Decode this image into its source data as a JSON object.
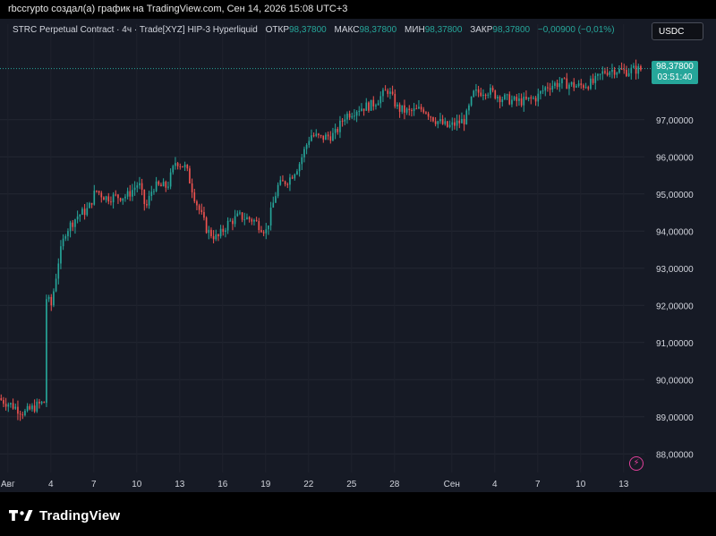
{
  "attribution": "rbccrypto создал(а) график на TradingView.com, Сен 14, 2026 15:08 UTC+3",
  "legend": {
    "symbol": "STRC Perpetual Contract · 4ч · Trade[XYZ] HIP-3 Hyperliquid",
    "open_label": "ОТКР",
    "open_value": "98,37800",
    "high_label": "МАКС",
    "high_value": "98,37800",
    "low_label": "МИН",
    "low_value": "98,37800",
    "close_label": "ЗАКР",
    "close_value": "98,37800",
    "change": "−0,00900 (−0,01%)"
  },
  "currency_button": "USDC",
  "price_tag": {
    "price": "98,37800",
    "countdown": "03:51:40"
  },
  "brand": {
    "name": "TradingView"
  },
  "colors": {
    "up": "#26a69a",
    "down": "#ef5350",
    "background": "#161a25",
    "accent_icon": "#e0409a"
  },
  "icons": {
    "logo": "tradingview-logo-icon",
    "alert": "lightning-alert-icon"
  },
  "chart_data": {
    "type": "candlestick",
    "y_range": [
      87.5,
      98.85
    ],
    "y_ticks": [
      {
        "value": 88,
        "label": "88,00000"
      },
      {
        "value": 89,
        "label": "89,00000"
      },
      {
        "value": 90,
        "label": "90,00000"
      },
      {
        "value": 91,
        "label": "91,00000"
      },
      {
        "value": 92,
        "label": "92,00000"
      },
      {
        "value": 93,
        "label": "93,00000"
      },
      {
        "value": 94,
        "label": "94,00000"
      },
      {
        "value": 95,
        "label": "95,00000"
      },
      {
        "value": 96,
        "label": "96,00000"
      },
      {
        "value": 97,
        "label": "97,00000"
      }
    ],
    "last_price": 98.378,
    "x_ticks": [
      {
        "day": 1,
        "label": "Авг"
      },
      {
        "day": 4,
        "label": "4"
      },
      {
        "day": 7,
        "label": "7"
      },
      {
        "day": 10,
        "label": "10"
      },
      {
        "day": 13,
        "label": "13"
      },
      {
        "day": 16,
        "label": "16"
      },
      {
        "day": 19,
        "label": "19"
      },
      {
        "day": 22,
        "label": "22"
      },
      {
        "day": 25,
        "label": "25"
      },
      {
        "day": 28,
        "label": "28"
      },
      {
        "day": 32,
        "label": "Сен"
      },
      {
        "day": 35,
        "label": "4"
      },
      {
        "day": 38,
        "label": "7"
      },
      {
        "day": 41,
        "label": "10"
      },
      {
        "day": 44,
        "label": "13"
      }
    ],
    "x_range_days": [
      0.45,
      45.45
    ],
    "anchors": [
      [
        0.45,
        89.5
      ],
      [
        1.5,
        89.3
      ],
      [
        2.3,
        89.1
      ],
      [
        3.2,
        89.3
      ],
      [
        3.75,
        89.4
      ],
      [
        3.85,
        92.2
      ],
      [
        4.2,
        92.0
      ],
      [
        4.7,
        93.2
      ],
      [
        5.2,
        94.0
      ],
      [
        6.0,
        94.4
      ],
      [
        6.8,
        94.6
      ],
      [
        7.3,
        95.1
      ],
      [
        8.0,
        94.9
      ],
      [
        9.5,
        94.95
      ],
      [
        10.3,
        95.3
      ],
      [
        10.8,
        94.6
      ],
      [
        11.3,
        95.2
      ],
      [
        12.3,
        95.2
      ],
      [
        12.9,
        95.9
      ],
      [
        13.6,
        95.7
      ],
      [
        14.3,
        94.8
      ],
      [
        15.1,
        94.0
      ],
      [
        15.8,
        93.8
      ],
      [
        16.5,
        94.2
      ],
      [
        17.3,
        94.4
      ],
      [
        18.3,
        94.3
      ],
      [
        19.2,
        94.0
      ],
      [
        20.0,
        95.2
      ],
      [
        20.8,
        95.4
      ],
      [
        21.5,
        95.8
      ],
      [
        22.3,
        96.6
      ],
      [
        23.0,
        96.5
      ],
      [
        24.0,
        96.6
      ],
      [
        24.7,
        97.1
      ],
      [
        25.6,
        97.3
      ],
      [
        26.6,
        97.4
      ],
      [
        27.7,
        97.8
      ],
      [
        28.4,
        97.3
      ],
      [
        29.2,
        97.2
      ],
      [
        30.2,
        97.3
      ],
      [
        31.0,
        97.0
      ],
      [
        31.9,
        96.8
      ],
      [
        33.1,
        97.0
      ],
      [
        33.7,
        97.7
      ],
      [
        34.6,
        97.8
      ],
      [
        35.6,
        97.6
      ],
      [
        36.5,
        97.5
      ],
      [
        37.3,
        97.5
      ],
      [
        38.1,
        97.6
      ],
      [
        38.8,
        97.9
      ],
      [
        39.8,
        98.0
      ],
      [
        41.0,
        97.9
      ],
      [
        42.1,
        98.0
      ],
      [
        42.8,
        98.3
      ],
      [
        43.5,
        98.35
      ],
      [
        44.3,
        98.3
      ],
      [
        44.9,
        98.35
      ]
    ],
    "candles_per_day": 6
  }
}
